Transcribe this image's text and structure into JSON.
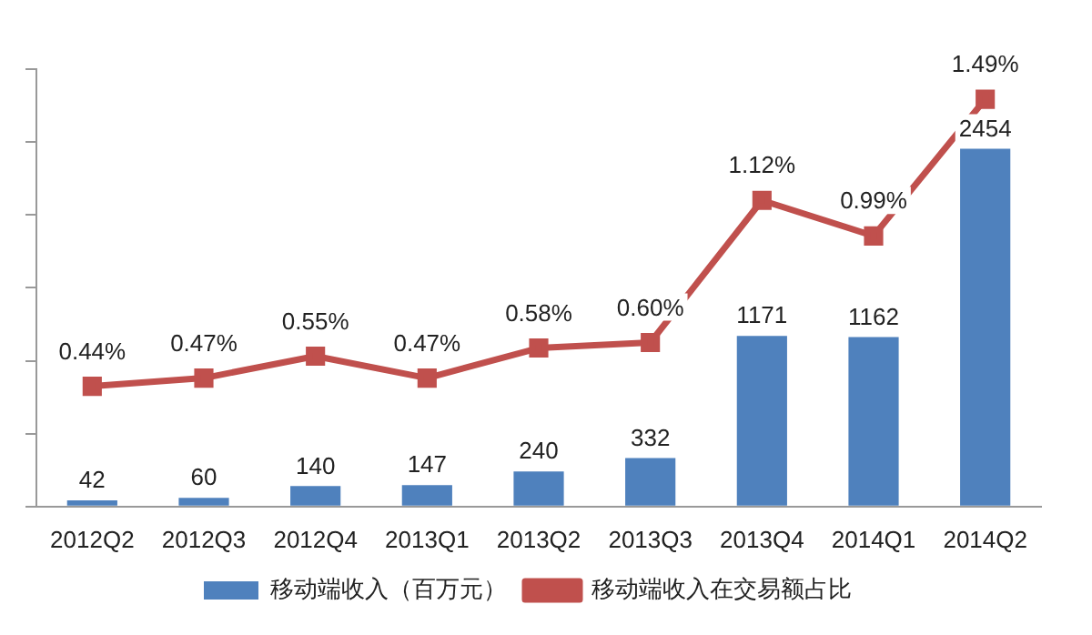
{
  "chart_data": {
    "type": "bar",
    "categories": [
      "2012Q2",
      "2012Q3",
      "2012Q4",
      "2013Q1",
      "2013Q2",
      "2013Q3",
      "2013Q4",
      "2014Q1",
      "2014Q2"
    ],
    "series": [
      {
        "name": "移动端收入（百万元）",
        "color": "#4f81bd",
        "values": [
          42,
          60,
          140,
          147,
          240,
          332,
          1171,
          1162,
          2454
        ],
        "value_labels": [
          "42",
          "60",
          "140",
          "147",
          "240",
          "332",
          "1171",
          "1162",
          "2454"
        ]
      },
      {
        "name": "移动端收入在交易额占比",
        "type": "line",
        "axis": "y2",
        "color": "#c0504d",
        "marker": "square",
        "values": [
          0.44,
          0.47,
          0.55,
          0.47,
          0.58,
          0.6,
          1.12,
          0.99,
          1.49
        ],
        "value_labels": [
          "0.44%",
          "0.47%",
          "0.55%",
          "0.47%",
          "0.58%",
          "0.60%",
          "1.12%",
          "0.99%",
          "1.49%"
        ]
      }
    ],
    "ylim": [
      0,
      3000
    ],
    "yticks": [
      {
        "value": 0,
        "label": null
      },
      {
        "value": 500,
        "label": null
      },
      {
        "value": 1000,
        "label": null
      },
      {
        "value": 1500,
        "label": null
      },
      {
        "value": 2000,
        "label": null
      },
      {
        "value": 2500,
        "label": null
      },
      {
        "value": 3000,
        "label": null
      }
    ],
    "y2lim": [
      0,
      1.6
    ],
    "tick_labels": "x",
    "grid": false,
    "legend": "bottom"
  }
}
